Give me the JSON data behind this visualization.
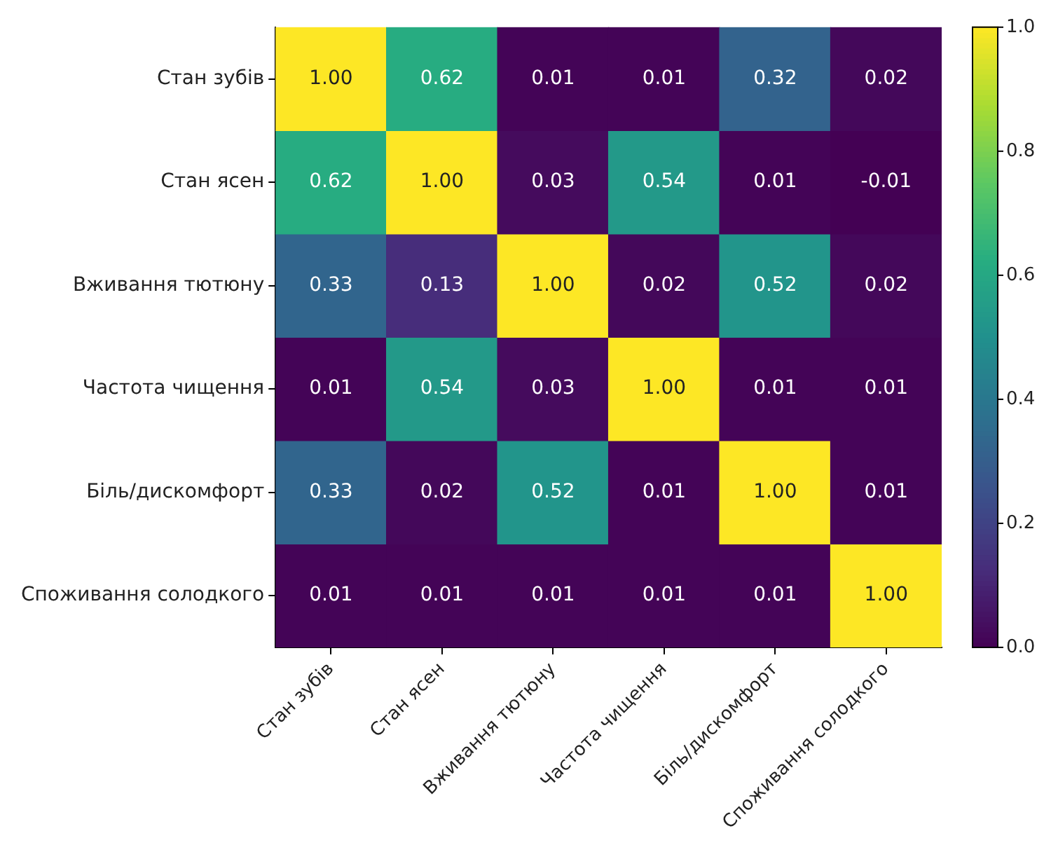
{
  "chart_data": {
    "type": "heatmap",
    "categories": [
      "Стан зубів",
      "Стан ясен",
      "Вживання тютюну",
      "Частота чищення",
      "Біль/дискомфорт",
      "Споживання солодкого"
    ],
    "y_categories": [
      "Стан зубів",
      "Стан ясен",
      "Вживання тютюну",
      "Частота чищення",
      "Біль/дискомфорт",
      "Споживання солодкого"
    ],
    "cells": [
      [
        1,
        0.62,
        0.01,
        0.01,
        0.32,
        0.02
      ],
      [
        0.62,
        1,
        0.03,
        0.54,
        0.01,
        -0.01
      ],
      [
        0.33,
        0.13,
        1,
        0.02,
        0.52,
        0.02
      ],
      [
        0.01,
        0.54,
        0.03,
        1,
        0.01,
        0.01
      ],
      [
        0.33,
        0.02,
        0.52,
        0.01,
        1,
        0.01
      ],
      [
        0.01,
        0.01,
        0.01,
        0.01,
        0.01,
        1
      ]
    ],
    "cell_labels": [
      [
        "1.00",
        "0.62",
        "0.01",
        "0.01",
        "0.32",
        "0.02"
      ],
      [
        "0.62",
        "1.00",
        "0.03",
        "0.54",
        "0.01",
        "-0.01"
      ],
      [
        "0.33",
        "0.13",
        "1.00",
        "0.02",
        "0.52",
        "0.02"
      ],
      [
        "0.01",
        "0.54",
        "0.03",
        "1.00",
        "0.01",
        "0.01"
      ],
      [
        "0.33",
        "0.02",
        "0.52",
        "0.01",
        "1.00",
        "0.01"
      ],
      [
        "0.01",
        "0.01",
        "0.01",
        "0.01",
        "0.01",
        "1.00"
      ]
    ],
    "clim": [
      0,
      1
    ],
    "cticks": [
      {
        "value": 0,
        "label": "0.0"
      },
      0.2,
      0.4,
      0.6,
      0.8,
      {
        "value": 1,
        "label": "1.0"
      }
    ]
  }
}
